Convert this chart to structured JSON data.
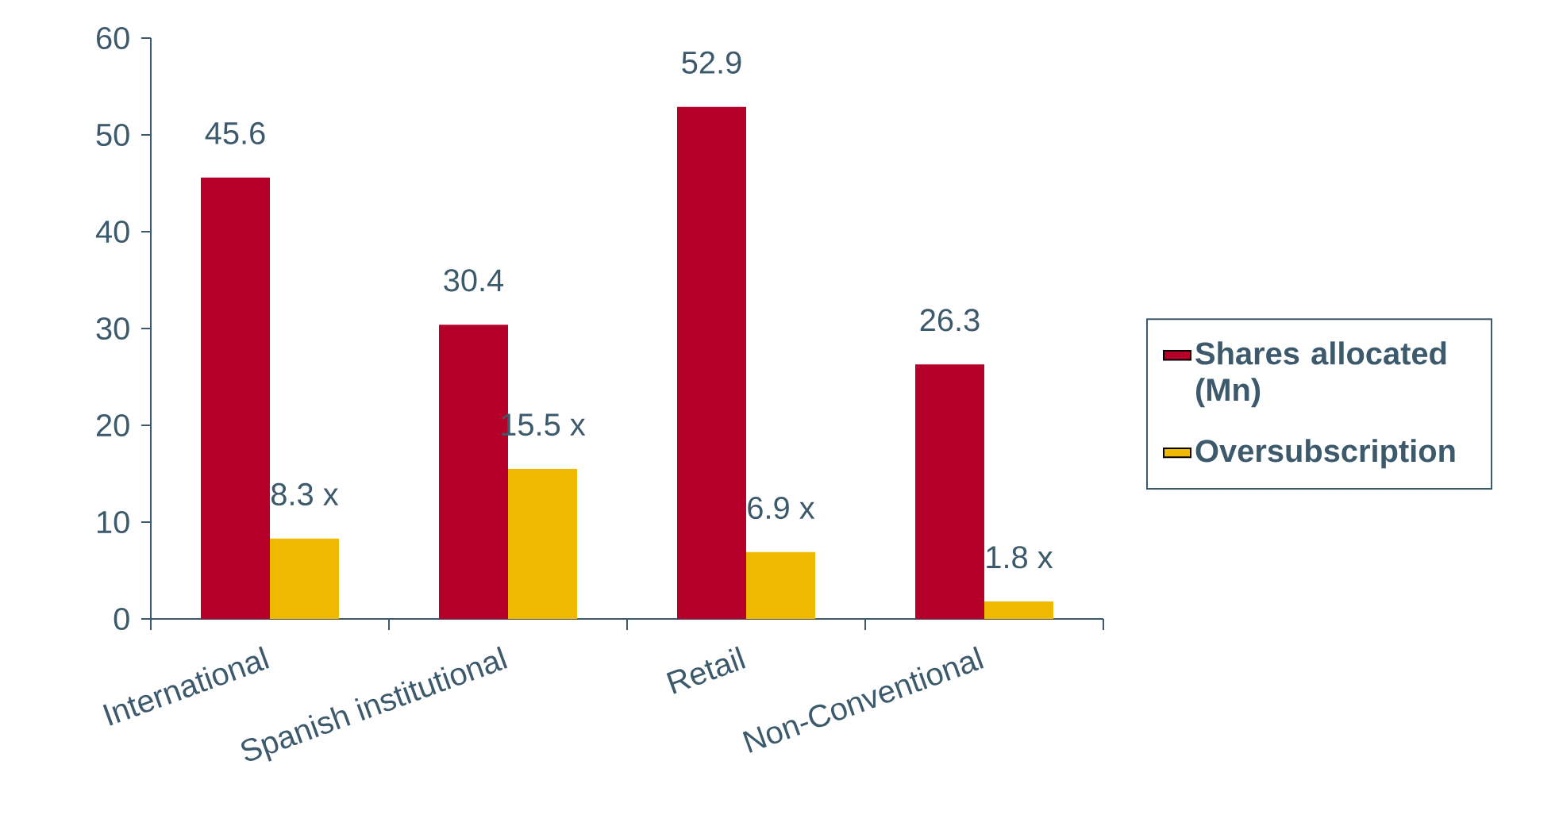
{
  "chart_data": {
    "type": "bar",
    "categories": [
      "International",
      "Spanish institutional",
      "Retail",
      "Non-Conventional"
    ],
    "series": [
      {
        "name": "Shares allocated (Mn)",
        "color": "#b5002a",
        "values": [
          45.6,
          30.4,
          52.9,
          26.3
        ],
        "value_labels": [
          "45.6",
          "30.4",
          "52.9",
          "26.3"
        ]
      },
      {
        "name": "Oversubscription",
        "color": "#f0b800",
        "values": [
          8.3,
          15.5,
          6.9,
          1.8
        ],
        "value_labels": [
          "8.3 x",
          "15.5 x",
          "6.9 x",
          "1.8 x"
        ]
      }
    ],
    "ylim": [
      0,
      60
    ],
    "yticks": [
      0,
      10,
      20,
      30,
      40,
      50,
      60
    ],
    "grid": false,
    "legend": "right"
  }
}
